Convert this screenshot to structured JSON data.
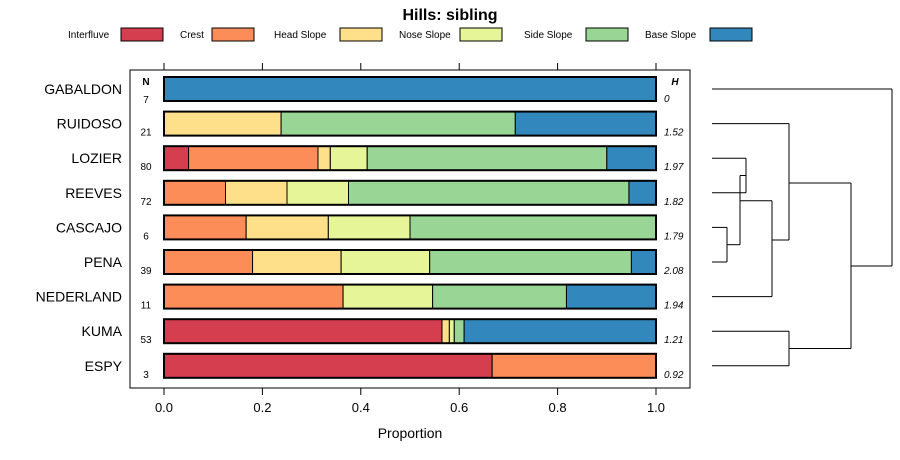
{
  "chart_data": {
    "type": "bar",
    "orientation": "horizontal",
    "stacked": true,
    "title": "Hills: sibling",
    "xlabel": "Proportion",
    "ylabel": "",
    "xlim": [
      0,
      1
    ],
    "x_ticks": [
      "0.0",
      "0.2",
      "0.4",
      "0.6",
      "0.8",
      "1.0"
    ],
    "n_header": "N",
    "h_header": "H",
    "legend": [
      {
        "name": "Interfluve",
        "color": "#d53e4f"
      },
      {
        "name": "Crest",
        "color": "#fc8d59"
      },
      {
        "name": "Head Slope",
        "color": "#fee08b"
      },
      {
        "name": "Nose Slope",
        "color": "#e6f598"
      },
      {
        "name": "Side Slope",
        "color": "#99d594"
      },
      {
        "name": "Base Slope",
        "color": "#3288bd"
      }
    ],
    "categories": [
      "GABALDON",
      "RUIDOSO",
      "LOZIER",
      "REEVES",
      "CASCAJO",
      "PENA",
      "NEDERLAND",
      "KUMA",
      "ESPY"
    ],
    "n_values": [
      "7",
      "21",
      "80",
      "72",
      "6",
      "39",
      "11",
      "53",
      "3"
    ],
    "h_values": [
      "0",
      "1.52",
      "1.97",
      "1.82",
      "1.79",
      "2.08",
      "1.94",
      "1.21",
      "0.92"
    ],
    "series": [
      {
        "name": "Interfluve",
        "values": [
          0,
          0,
          0.05,
          0,
          0,
          0,
          0,
          0.565,
          0.667
        ]
      },
      {
        "name": "Crest",
        "values": [
          0,
          0,
          0.263,
          0.125,
          0.167,
          0.18,
          0.364,
          0,
          0.333
        ]
      },
      {
        "name": "Head Slope",
        "values": [
          0,
          0.238,
          0.025,
          0.125,
          0.167,
          0.18,
          0,
          0.015,
          0
        ]
      },
      {
        "name": "Nose Slope",
        "values": [
          0,
          0,
          0.075,
          0.125,
          0.166,
          0.18,
          0.182,
          0.01,
          0
        ]
      },
      {
        "name": "Side Slope",
        "values": [
          0,
          0.476,
          0.487,
          0.57,
          0.5,
          0.41,
          0.272,
          0.02,
          0
        ]
      },
      {
        "name": "Base Slope",
        "values": [
          1,
          0.286,
          0.1,
          0.055,
          0,
          0.05,
          0.182,
          0.39,
          0
        ]
      }
    ],
    "dendrogram": "hierarchical clustering of profiles (right side)"
  }
}
